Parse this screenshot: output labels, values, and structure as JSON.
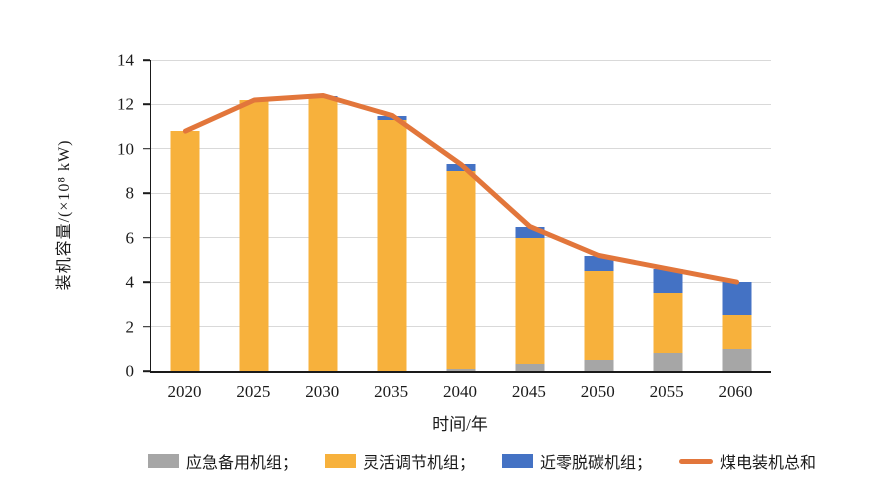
{
  "chart_data": {
    "type": "bar",
    "stacked": true,
    "title": "",
    "xlabel": "时间/年",
    "ylabel": "装机容量/(×10⁸ kW)",
    "categories": [
      "2020",
      "2025",
      "2030",
      "2035",
      "2040",
      "2045",
      "2050",
      "2055",
      "2060"
    ],
    "series": [
      {
        "name": "应急备用机组",
        "type": "bar",
        "color": "#a6a6a6",
        "values": [
          0,
          0,
          0,
          0,
          0.1,
          0.3,
          0.5,
          0.8,
          1.0
        ]
      },
      {
        "name": "灵活调节机组",
        "type": "bar",
        "color": "#f7b13c",
        "values": [
          10.8,
          12.2,
          12.3,
          11.3,
          8.9,
          5.7,
          4.0,
          2.7,
          1.5
        ]
      },
      {
        "name": "近零脱碳机组",
        "type": "bar",
        "color": "#4472c4",
        "values": [
          0,
          0,
          0.1,
          0.2,
          0.3,
          0.5,
          0.7,
          1.1,
          1.5
        ]
      },
      {
        "name": "煤电装机总和",
        "type": "line",
        "color": "#e2763b",
        "values": [
          10.8,
          12.2,
          12.4,
          11.5,
          9.3,
          6.5,
          5.2,
          4.6,
          4.0
        ]
      }
    ],
    "ylim": [
      0,
      14
    ],
    "ytick_step": 2,
    "grid": true,
    "gridline_color": "#d9d9d9",
    "legend_position": "bottom"
  },
  "legend": {
    "items": [
      {
        "label": "应急备用机组；",
        "swatch": "rect",
        "color": "#a6a6a6"
      },
      {
        "label": "灵活调节机组；",
        "swatch": "rect",
        "color": "#f7b13c"
      },
      {
        "label": "近零脱碳机组；",
        "swatch": "rect",
        "color": "#4472c4"
      },
      {
        "label": "煤电装机总和",
        "swatch": "line",
        "color": "#e2763b"
      }
    ]
  }
}
